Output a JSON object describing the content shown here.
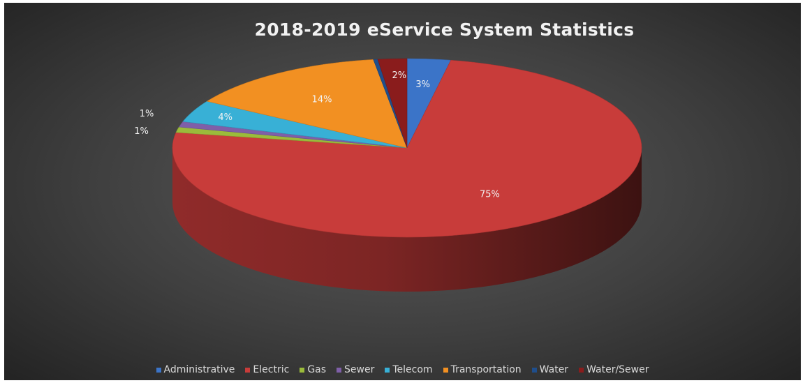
{
  "chart_data": {
    "type": "pie",
    "title": "2018-2019 eService System Statistics",
    "three_d": true,
    "legend_position": "bottom",
    "slices": [
      {
        "name": "Administrative",
        "value": 3,
        "label": "3%",
        "color": "#3b74c8"
      },
      {
        "name": "Electric",
        "value": 75,
        "label": "75%",
        "color": "#c83c3a"
      },
      {
        "name": "Gas",
        "value": 1,
        "label": "1%",
        "color": "#9bbb3b"
      },
      {
        "name": "Sewer",
        "value": 1,
        "label": "1%",
        "color": "#7f5fa8"
      },
      {
        "name": "Telecom",
        "value": 4,
        "label": "4%",
        "color": "#38b0d6"
      },
      {
        "name": "Transportation",
        "value": 14,
        "label": "14%",
        "color": "#f29022"
      },
      {
        "name": "Water",
        "value": 0.3,
        "label": "",
        "color": "#1f4e8c"
      },
      {
        "name": "Water/Sewer",
        "value": 2,
        "label": "2%",
        "color": "#8a1c1c"
      }
    ]
  }
}
